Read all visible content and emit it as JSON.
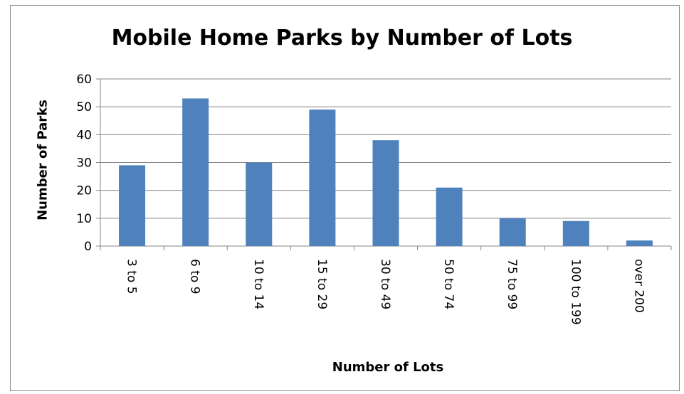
{
  "chart_data": {
    "type": "bar",
    "title": "Mobile Home Parks by Number of Lots",
    "xlabel": "Number of Lots",
    "ylabel": "Number of Parks",
    "categories": [
      "3 to 5",
      "6 to 9",
      "10 to 14",
      "15 to 29",
      "30 to 49",
      "50 to 74",
      "75 to 99",
      "100 to 199",
      "over 200"
    ],
    "values": [
      29,
      53,
      30,
      49,
      38,
      21,
      10,
      9,
      2
    ],
    "ylim": [
      0,
      60
    ],
    "yticks": [
      0,
      10,
      20,
      30,
      40,
      50,
      60
    ],
    "grid": true,
    "legend": "none",
    "colors": {
      "bar": "#4f81bd",
      "grid": "#868686",
      "axis": "#868686"
    }
  }
}
